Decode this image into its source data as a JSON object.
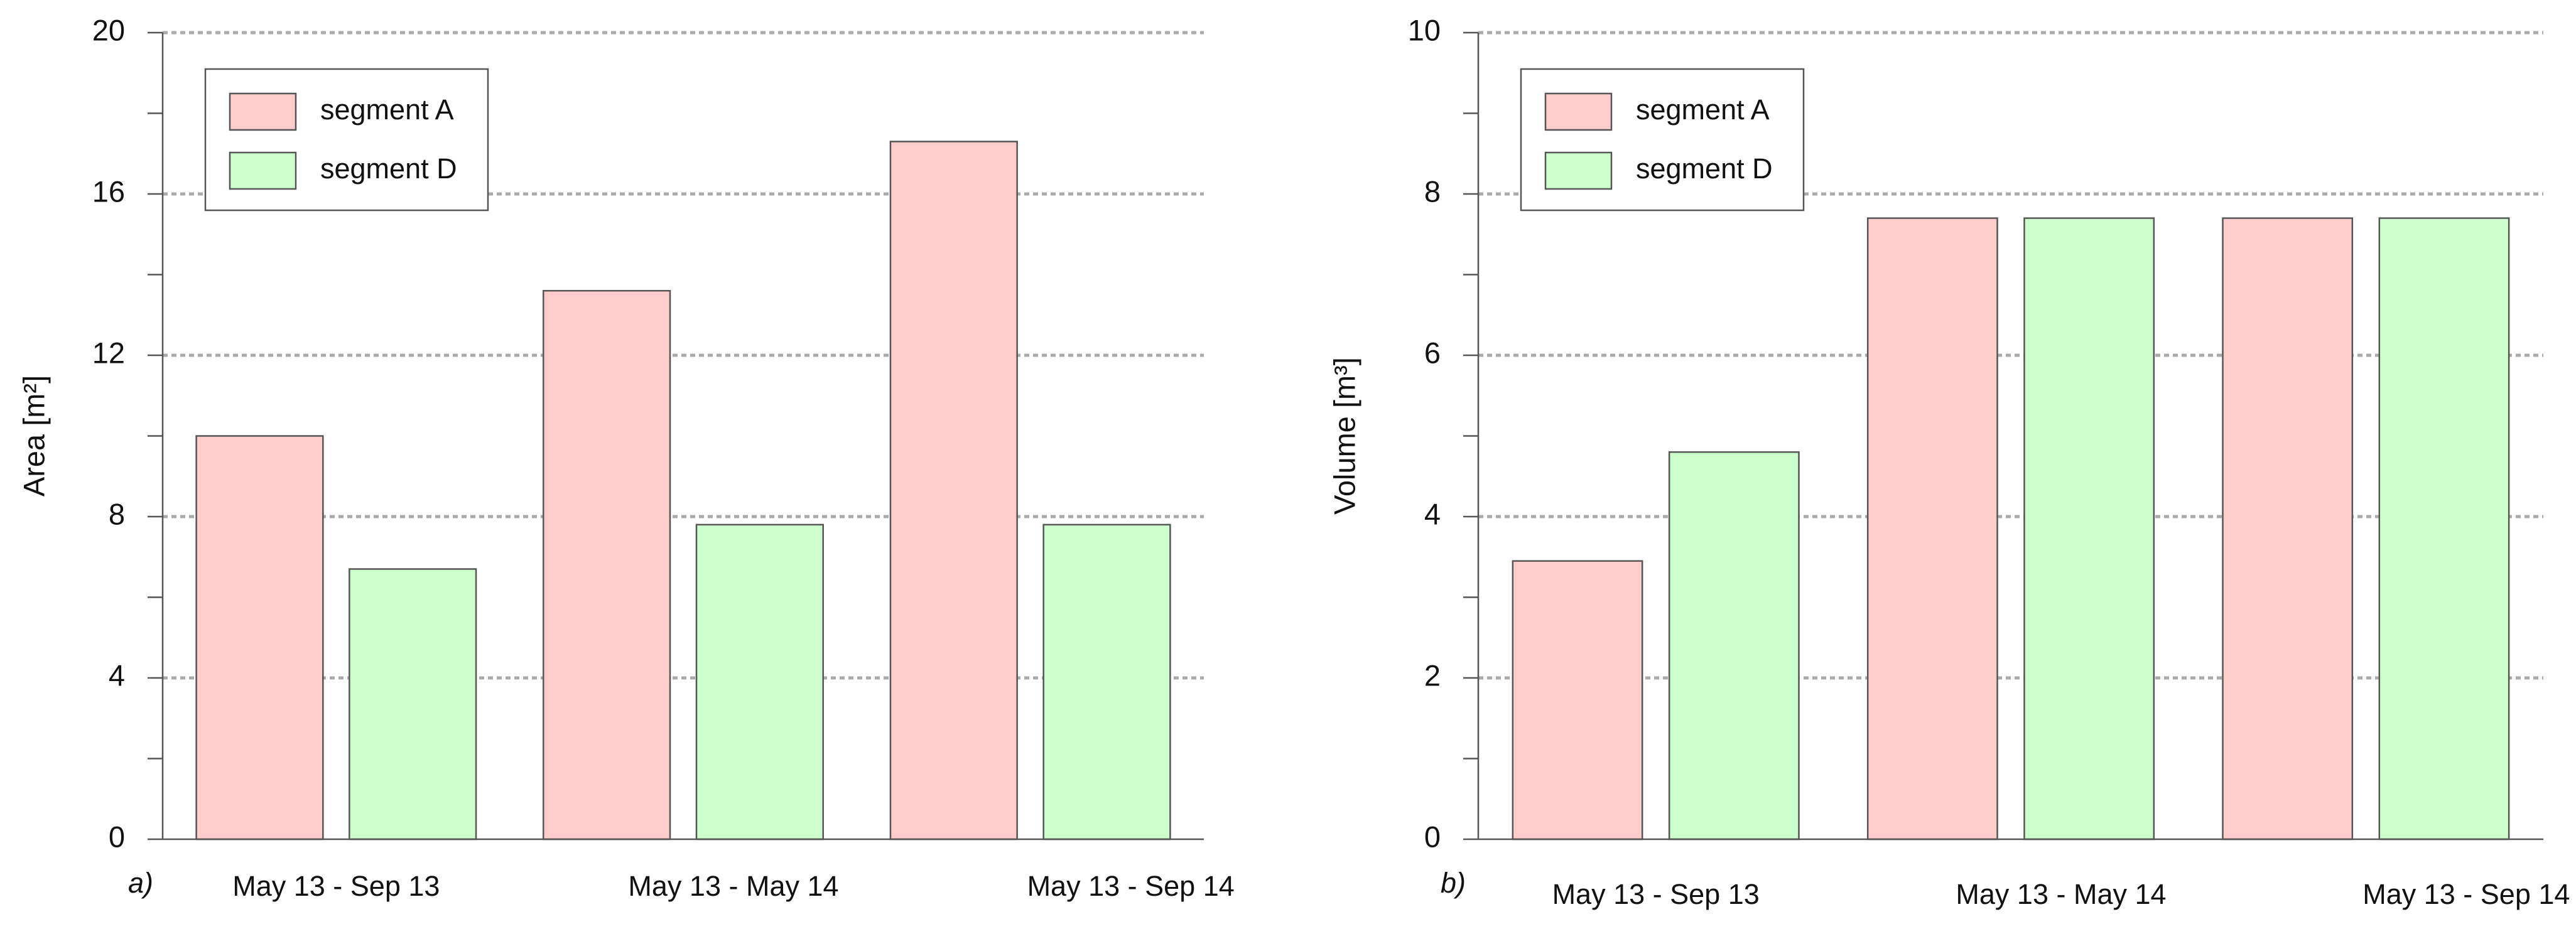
{
  "chart_data": [
    {
      "type": "bar",
      "panel_label": "a)",
      "ylabel": "Area [m²]",
      "categories": [
        "May 13 - Sep 13",
        "May 13 - May 14",
        "May 13 - Sep 14"
      ],
      "series": [
        {
          "name": "segment A",
          "color": "#ffcccc",
          "values": [
            10.0,
            13.6,
            17.3
          ]
        },
        {
          "name": "segment D",
          "color": "#ccffcc",
          "values": [
            6.7,
            7.8,
            7.8
          ]
        }
      ],
      "ylim": [
        0,
        20
      ],
      "yticks": [
        0,
        4,
        8,
        12,
        16,
        20
      ],
      "minor_yticks": [
        2,
        6,
        10,
        14,
        18
      ],
      "grid": true,
      "legend": "upper left"
    },
    {
      "type": "bar",
      "panel_label": "b)",
      "ylabel": "Volume [m³]",
      "categories": [
        "May 13 - Sep 13",
        "May 13 - May 14",
        "May 13 - Sep 14"
      ],
      "series": [
        {
          "name": "segment A",
          "color": "#ffcccc",
          "values": [
            3.45,
            7.7,
            7.7
          ]
        },
        {
          "name": "segment D",
          "color": "#ccffcc",
          "values": [
            4.8,
            7.7,
            7.7
          ]
        }
      ],
      "ylim": [
        0,
        10
      ],
      "yticks": [
        0,
        2,
        4,
        6,
        8,
        10
      ],
      "minor_yticks": [
        1,
        3,
        5,
        7,
        9
      ],
      "grid": true,
      "legend": "upper left"
    }
  ]
}
